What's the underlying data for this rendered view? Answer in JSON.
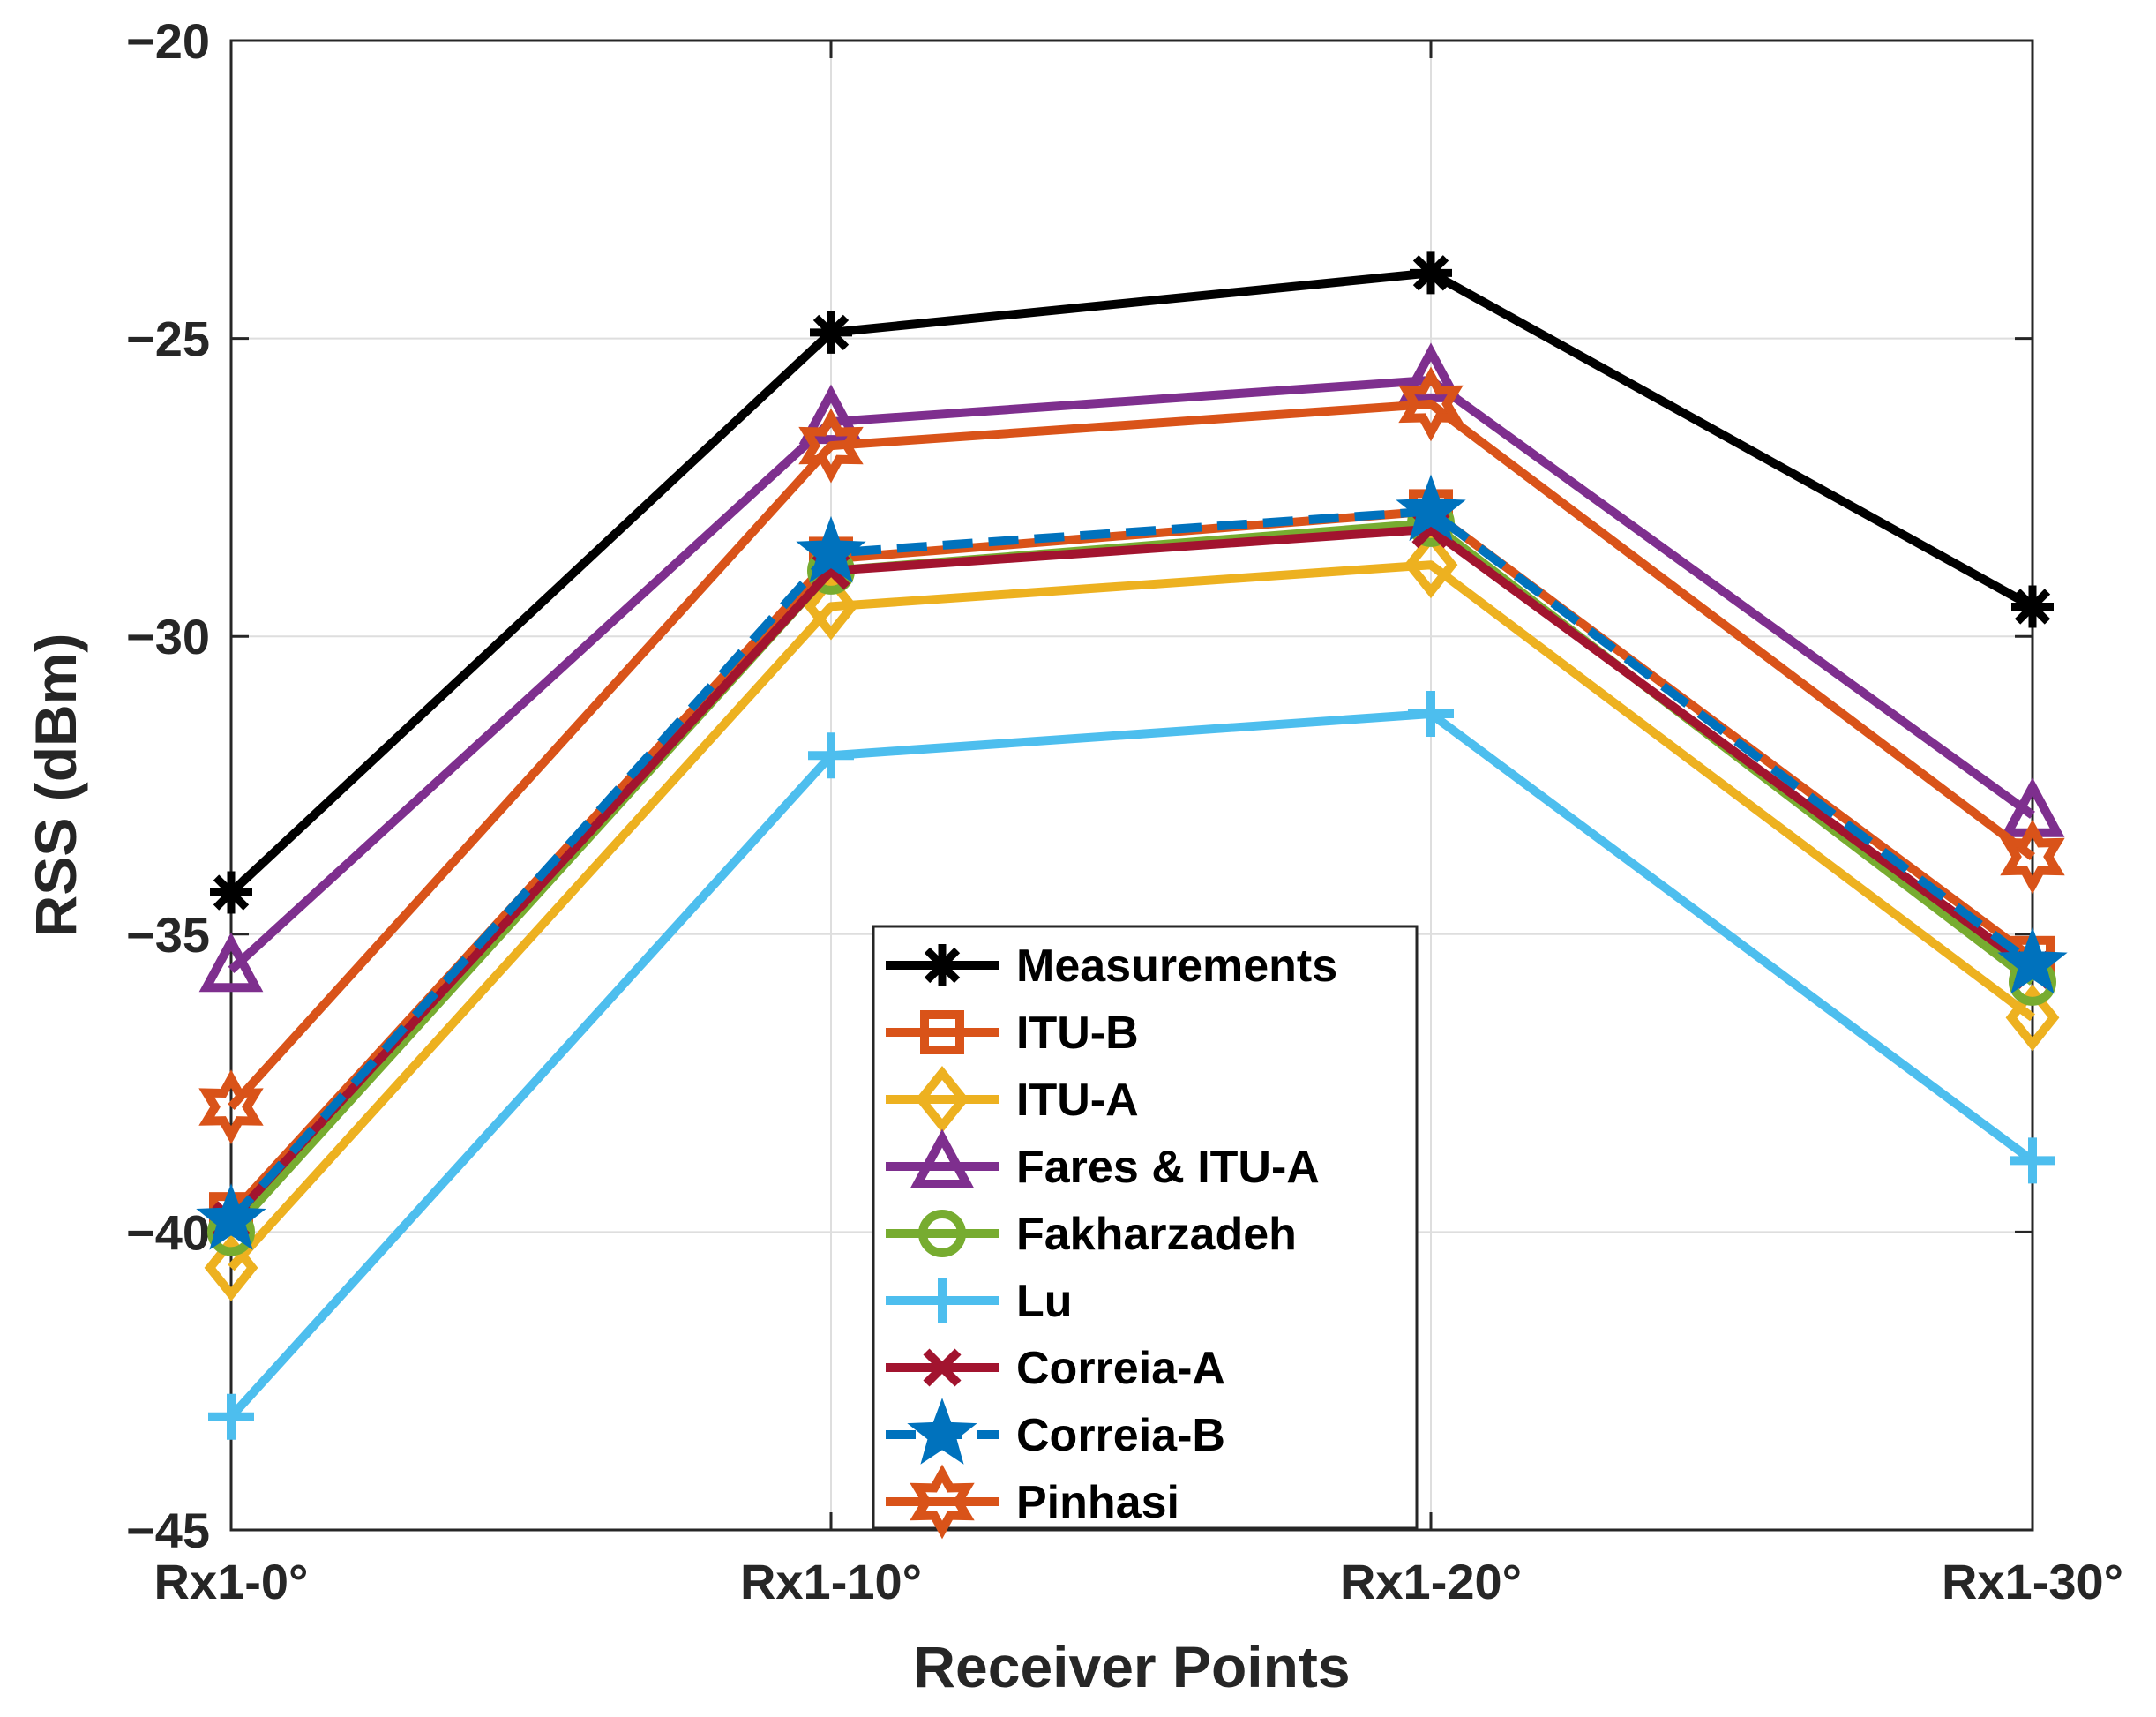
{
  "chart_data": {
    "type": "line",
    "title": "",
    "xlabel": "Receiver Points",
    "ylabel": "RSS (dBm)",
    "categories": [
      "Rx1-0°",
      "Rx1-10°",
      "Rx1-20°",
      "Rx1-30°"
    ],
    "ylim": [
      -45,
      -20
    ],
    "yticks": [
      -20,
      -25,
      -30,
      -35,
      -40,
      -45
    ],
    "ytick_labels": [
      "−20",
      "−25",
      "−30",
      "−35",
      "−40",
      "−45"
    ],
    "grid": true,
    "legend_position": "bottom-center",
    "series": [
      {
        "name": "Measurements",
        "values": [
          -34.3,
          -24.9,
          -23.9,
          -29.5
        ],
        "color": "#000000",
        "marker": "asterisk",
        "dash": false
      },
      {
        "name": "ITU-B",
        "values": [
          -39.7,
          -28.7,
          -27.9,
          -35.4
        ],
        "color": "#D95319",
        "marker": "square",
        "dash": false
      },
      {
        "name": "ITU-A",
        "values": [
          -40.6,
          -29.5,
          -28.8,
          -36.4
        ],
        "color": "#EDB120",
        "marker": "diamond",
        "dash": false
      },
      {
        "name": "Fares & ITU-A",
        "values": [
          -35.6,
          -26.4,
          -25.7,
          -33.0
        ],
        "color": "#7E2F8E",
        "marker": "triangle",
        "dash": false
      },
      {
        "name": "Fakharzadeh",
        "values": [
          -40.0,
          -28.9,
          -28.1,
          -35.8
        ],
        "color": "#77AC30",
        "marker": "circle",
        "dash": false
      },
      {
        "name": "Lu",
        "values": [
          -43.1,
          -32.0,
          -31.3,
          -38.8
        ],
        "color": "#4DBEEE",
        "marker": "plus",
        "dash": false
      },
      {
        "name": "Correia-A",
        "values": [
          -39.8,
          -28.9,
          -28.2,
          -35.6
        ],
        "color": "#A2142F",
        "marker": "x",
        "dash": false
      },
      {
        "name": "Correia-B",
        "values": [
          -39.8,
          -28.6,
          -27.9,
          -35.5
        ],
        "color": "#0072BD",
        "marker": "pentagram",
        "dash": true
      },
      {
        "name": "Pinhasi",
        "values": [
          -37.9,
          -26.8,
          -26.1,
          -33.7
        ],
        "color": "#D95319",
        "marker": "hexagram",
        "dash": false
      }
    ]
  }
}
